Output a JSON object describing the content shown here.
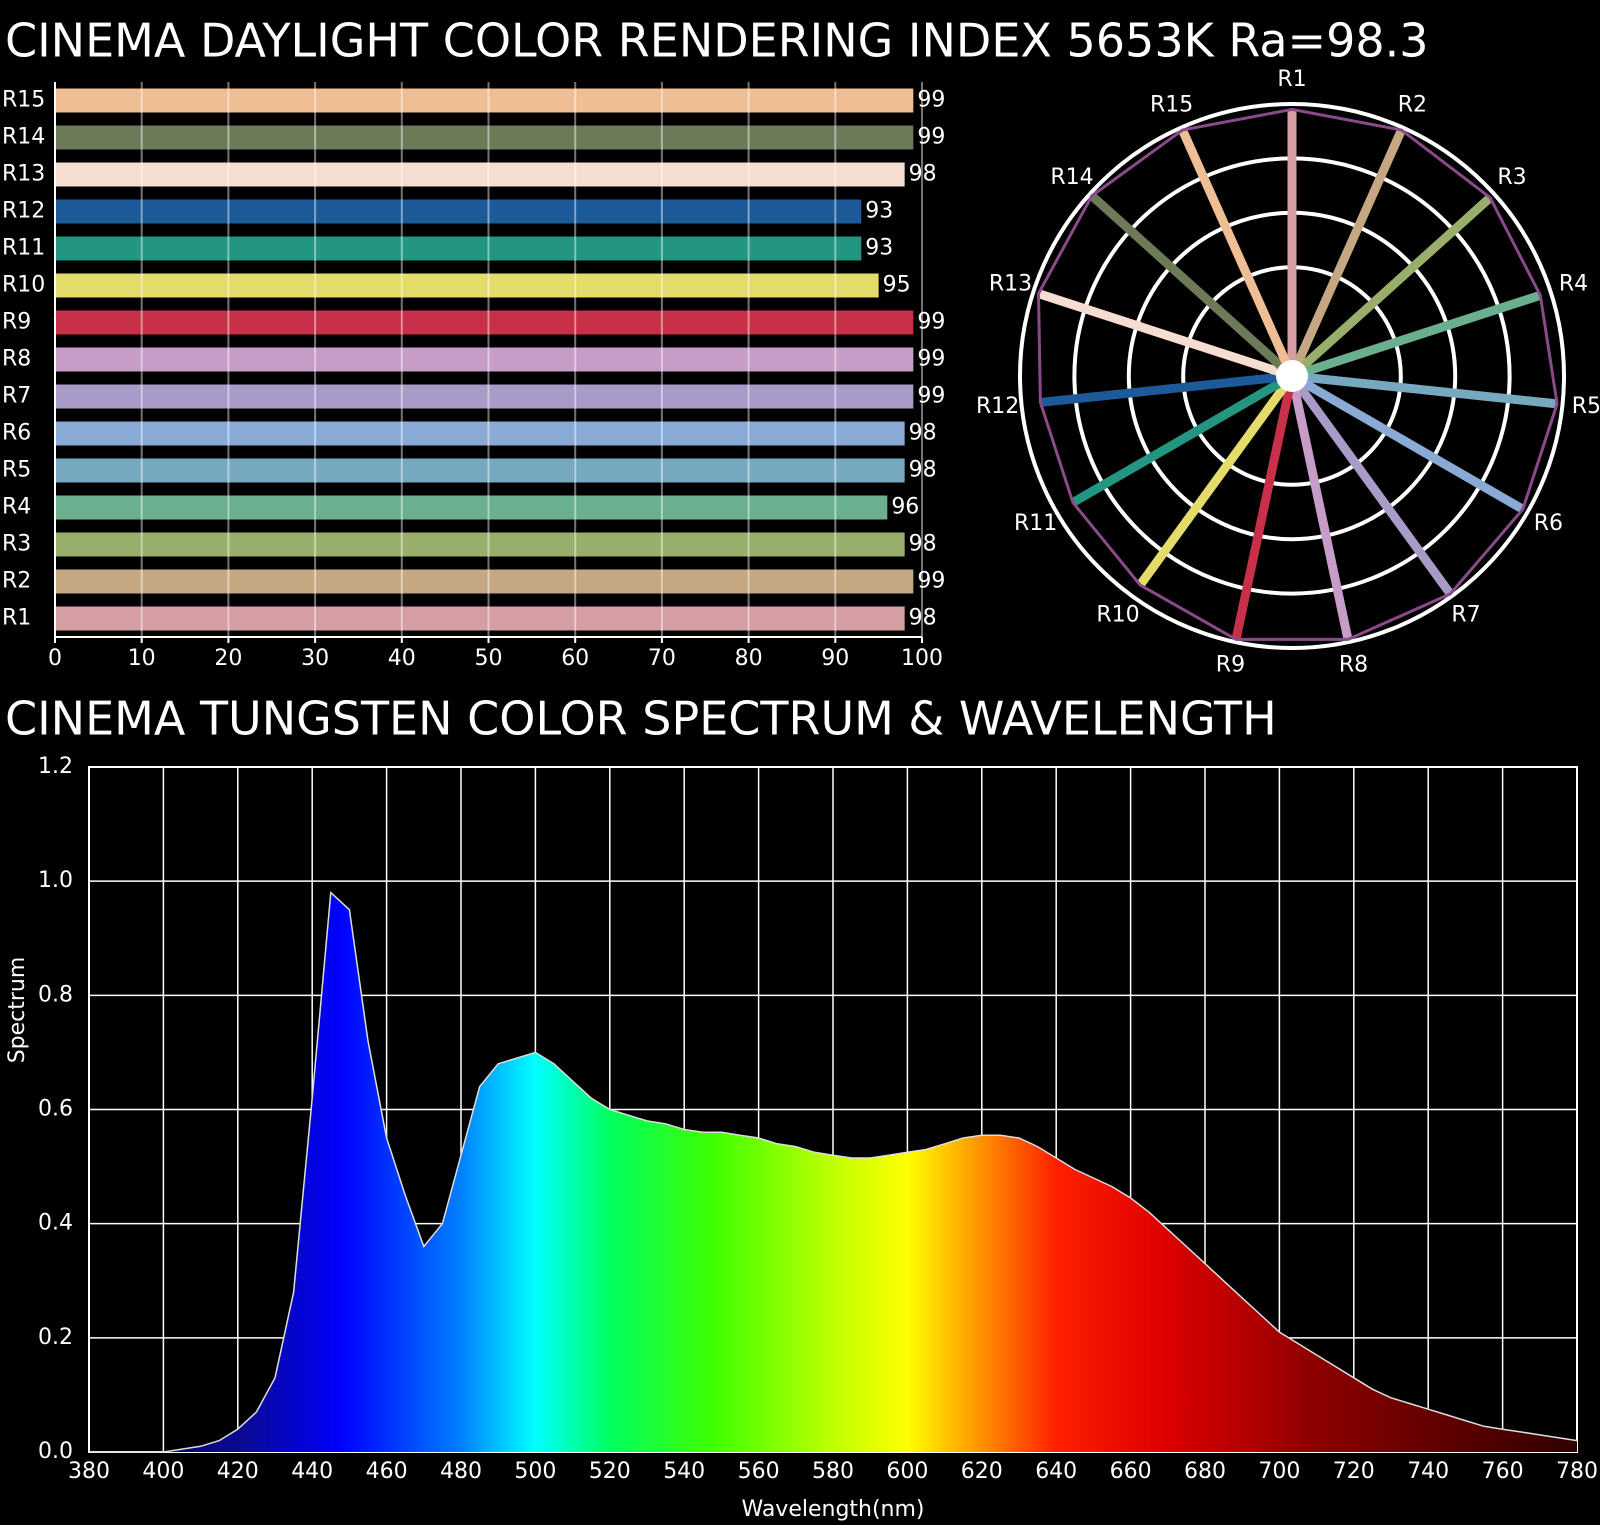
{
  "chart_data": [
    {
      "type": "bar",
      "title": "CINEMA DAYLIGHT COLOR RENDERING INDEX 5653K  Ra=98.3",
      "categories": [
        "R1",
        "R2",
        "R3",
        "R4",
        "R5",
        "R6",
        "R7",
        "R8",
        "R9",
        "R10",
        "R11",
        "R12",
        "R13",
        "R14",
        "R15"
      ],
      "values": [
        98,
        99,
        98,
        96,
        98,
        98,
        99,
        99,
        99,
        95,
        93,
        93,
        98,
        99,
        99
      ],
      "colors": [
        "#d59ea3",
        "#c5a882",
        "#9aae6b",
        "#6aaf8e",
        "#76a8c0",
        "#8aaad6",
        "#a99bc8",
        "#c79dc7",
        "#c8304a",
        "#e4dc6a",
        "#229680",
        "#1c5a9a",
        "#f6ddd2",
        "#6d7a58",
        "#f0be94"
      ],
      "xlim": [
        0,
        100
      ],
      "xticks": [
        0,
        10,
        20,
        30,
        40,
        50,
        60,
        70,
        80,
        90,
        100
      ],
      "grid": true
    },
    {
      "type": "polar",
      "categories": [
        "R1",
        "R2",
        "R3",
        "R4",
        "R5",
        "R6",
        "R7",
        "R8",
        "R9",
        "R10",
        "R11",
        "R12",
        "R13",
        "R14",
        "R15"
      ],
      "values": [
        98,
        99,
        98,
        96,
        98,
        98,
        99,
        99,
        99,
        95,
        93,
        93,
        98,
        99,
        99
      ],
      "colors": [
        "#d59ea3",
        "#c5a882",
        "#9aae6b",
        "#6aaf8e",
        "#76a8c0",
        "#8aaad6",
        "#a99bc8",
        "#c79dc7",
        "#c8304a",
        "#e4dc6a",
        "#229680",
        "#1c5a9a",
        "#f6ddd2",
        "#6d7a58",
        "#f0be94"
      ],
      "outline_color": "#8a4a8a",
      "rlim": [
        0,
        100
      ],
      "rticks": [
        40,
        60,
        80,
        100
      ],
      "grid": true
    },
    {
      "type": "area",
      "title": "CINEMA TUNGSTEN COLOR SPECTRUM & WAVELENGTH",
      "xlabel": "Wavelength(nm)",
      "ylabel": "Spectrum",
      "x": [
        380,
        385,
        390,
        395,
        400,
        405,
        410,
        415,
        420,
        425,
        430,
        435,
        440,
        445,
        450,
        455,
        460,
        465,
        470,
        475,
        480,
        485,
        490,
        495,
        500,
        505,
        510,
        515,
        520,
        525,
        530,
        535,
        540,
        545,
        550,
        555,
        560,
        565,
        570,
        575,
        580,
        585,
        590,
        595,
        600,
        605,
        610,
        615,
        620,
        625,
        630,
        635,
        640,
        645,
        650,
        655,
        660,
        665,
        670,
        675,
        680,
        685,
        690,
        695,
        700,
        705,
        710,
        715,
        720,
        725,
        730,
        735,
        740,
        745,
        750,
        755,
        760,
        765,
        770,
        775,
        780
      ],
      "values": [
        0,
        0,
        0,
        0,
        0,
        0.005,
        0.01,
        0.02,
        0.04,
        0.07,
        0.13,
        0.28,
        0.62,
        0.98,
        0.95,
        0.72,
        0.55,
        0.45,
        0.36,
        0.4,
        0.52,
        0.64,
        0.68,
        0.69,
        0.7,
        0.68,
        0.65,
        0.62,
        0.6,
        0.59,
        0.58,
        0.575,
        0.565,
        0.56,
        0.56,
        0.555,
        0.55,
        0.54,
        0.535,
        0.525,
        0.52,
        0.515,
        0.515,
        0.52,
        0.525,
        0.53,
        0.54,
        0.55,
        0.555,
        0.555,
        0.55,
        0.535,
        0.515,
        0.495,
        0.48,
        0.465,
        0.445,
        0.42,
        0.39,
        0.36,
        0.33,
        0.3,
        0.27,
        0.24,
        0.21,
        0.19,
        0.17,
        0.15,
        0.13,
        0.11,
        0.095,
        0.085,
        0.075,
        0.065,
        0.055,
        0.045,
        0.04,
        0.035,
        0.03,
        0.025,
        0.02
      ],
      "xlim": [
        380,
        780
      ],
      "xticks": [
        380,
        400,
        420,
        440,
        460,
        480,
        500,
        520,
        540,
        560,
        580,
        600,
        620,
        640,
        660,
        680,
        700,
        720,
        740,
        760,
        780
      ],
      "ylim": [
        0,
        1.2
      ],
      "yticks": [
        {
          "value": 0,
          "label": "0.0"
        },
        0.2,
        0.4,
        0.6,
        0.8,
        {
          "value": 1,
          "label": "1.0"
        },
        1.2
      ],
      "grid": true
    }
  ]
}
